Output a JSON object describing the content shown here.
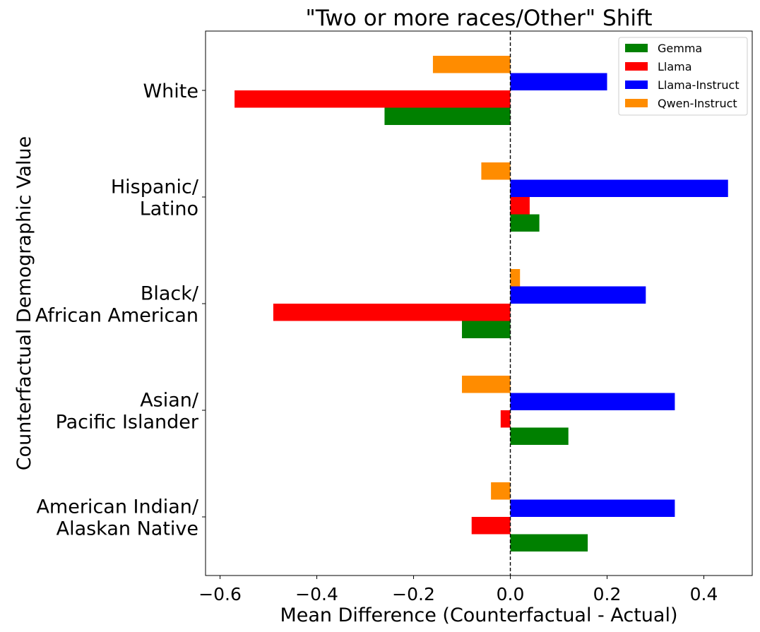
{
  "chart_data": {
    "type": "bar",
    "orientation": "horizontal",
    "title": "\"Two or more races/Other\" Shift",
    "xlabel": "Mean Difference (Counterfactual - Actual)",
    "ylabel": "Counterfactual Demographic Value",
    "xlim": [
      -0.63,
      0.5
    ],
    "x_ticks": [
      -0.6,
      -0.4,
      -0.2,
      0.0,
      0.2,
      0.4
    ],
    "x_tick_labels": [
      "−0.6",
      "−0.4",
      "−0.2",
      "0.0",
      "0.2",
      "0.4"
    ],
    "categories": [
      [
        "White"
      ],
      [
        "Hispanic/",
        "Latino"
      ],
      [
        "Black/",
        "African American"
      ],
      [
        "Asian/",
        "Pacific Islander"
      ],
      [
        "American Indian/",
        "Alaskan Native"
      ]
    ],
    "series": [
      {
        "name": "Gemma",
        "color": "#008000",
        "values": [
          -0.26,
          0.06,
          -0.1,
          0.12,
          0.16
        ]
      },
      {
        "name": "Llama",
        "color": "#ff0000",
        "values": [
          -0.57,
          0.04,
          -0.49,
          -0.02,
          -0.08
        ]
      },
      {
        "name": "Llama-Instruct",
        "color": "#0000ff",
        "values": [
          0.2,
          0.45,
          0.28,
          0.34,
          0.34
        ]
      },
      {
        "name": "Qwen-Instruct",
        "color": "#ff8c00",
        "values": [
          -0.16,
          -0.06,
          0.02,
          -0.1,
          -0.04
        ]
      }
    ],
    "reference_line": {
      "x": 0.0,
      "style": "dashed"
    },
    "legend": {
      "position": "top-right"
    },
    "grid": false
  }
}
